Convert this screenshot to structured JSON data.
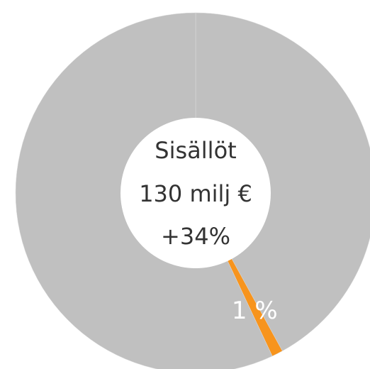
{
  "chart_data": {
    "type": "donut",
    "values": [
      42,
      1,
      57
    ],
    "value_labels": [
      null,
      "1 %",
      null
    ],
    "colors": [
      "#c0c0c0",
      "#f7941d",
      "#c0c0c0"
    ],
    "center_text": [
      "Sisällöt",
      "130 milj €",
      "+34%"
    ]
  }
}
